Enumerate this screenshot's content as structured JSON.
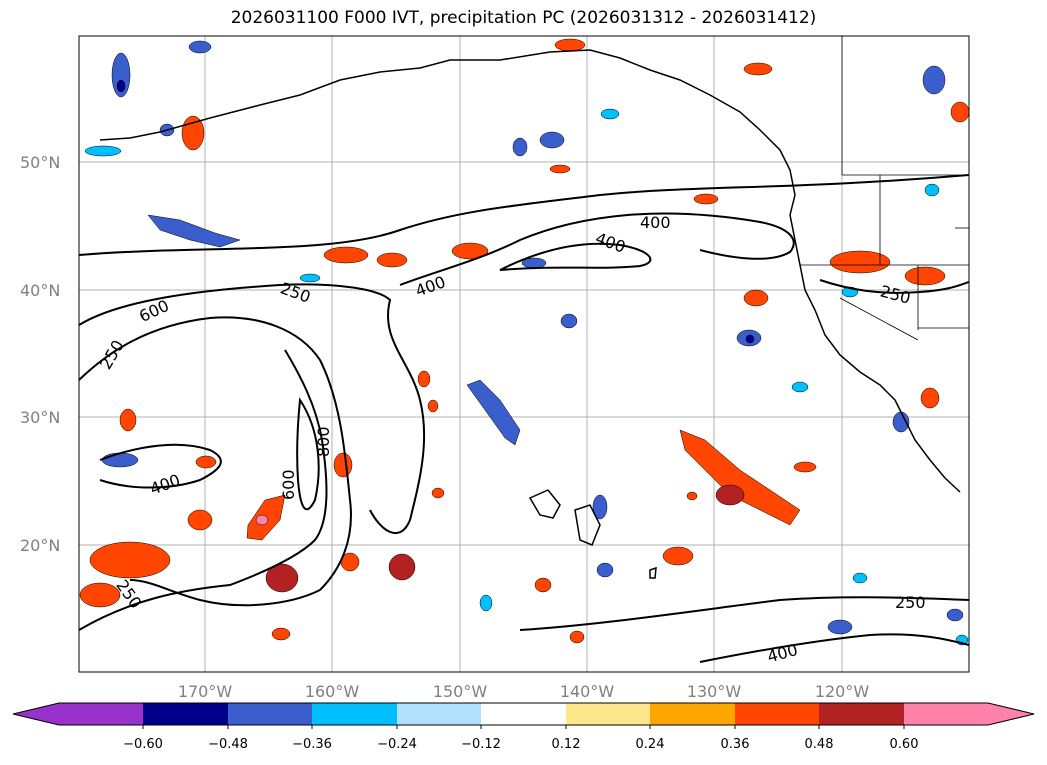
{
  "title": "2026031100 F000 IVT, precipitation PC (2026031312 - 2026031412)",
  "map": {
    "lat_labels": [
      "50°N",
      "40°N",
      "30°N",
      "20°N"
    ],
    "lon_labels": [
      "170°W",
      "160°W",
      "150°W",
      "140°W",
      "130°W",
      "120°W"
    ],
    "contour_labels": [
      "250",
      "400",
      "600",
      "800"
    ]
  },
  "colorbar": {
    "colors": [
      "#9932cc",
      "#00008b",
      "#3a5fcd",
      "#00bfff",
      "#b0e2ff",
      "#ffffff",
      "#ffe88c",
      "#ffa500",
      "#ff4500",
      "#b22222",
      "#ff82ab"
    ],
    "tick_labels": [
      "−0.60",
      "−0.48",
      "−0.36",
      "−0.24",
      "−0.12",
      "0.12",
      "0.24",
      "0.36",
      "0.48",
      "0.60"
    ]
  }
}
